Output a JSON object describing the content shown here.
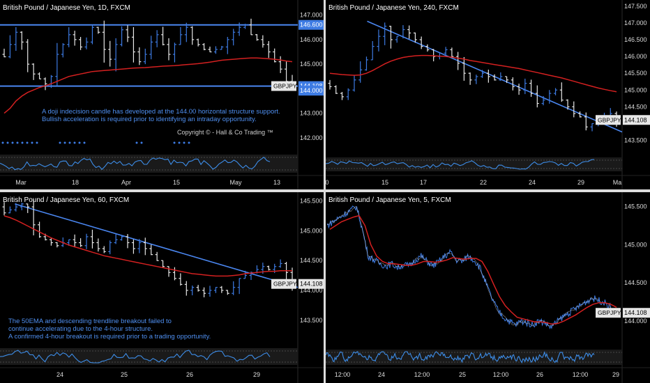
{
  "colors": {
    "background": "#000000",
    "bull": "#3d7be3",
    "bear": "#e8e8e8",
    "ema": "#d42020",
    "trend": "#4a86f0",
    "oscillator": "#3d8de8",
    "divider": "#dcdcdc",
    "axis_text": "#dddddd"
  },
  "panels": [
    {
      "id": "p1",
      "title": "British Pound / Japanese Yen, 1D, FXCM",
      "note": "A doji indecision candle has developed at the 144.00 horizontal structure support.\nBullish acceleration is required prior to identifying an intraday opportunity.",
      "copyright": "Copyright © - Hall & Co Trading ™",
      "price_labels": [
        "147.000",
        "146.000",
        "145.000",
        "144.000",
        "143.000",
        "142.000"
      ],
      "tag_levels": [
        "146.600",
        "144.108",
        "144.000"
      ],
      "symbol_tag": "GBPJPY",
      "date_labels": [
        "Mar",
        "18",
        "Apr",
        "15",
        "May",
        "13"
      ]
    },
    {
      "id": "p2",
      "title": "British Pound / Japanese Yen, 240, FXCM",
      "price_labels": [
        "147.500",
        "147.000",
        "146.500",
        "146.000",
        "145.500",
        "145.000",
        "144.500",
        "143.500"
      ],
      "current_price": "144.108",
      "symbol_tag": "GBPJPY",
      "date_labels": [
        "0",
        "15",
        "17",
        "22",
        "24",
        "29",
        "Ma"
      ]
    },
    {
      "id": "p3",
      "title": "British Pound / Japanese Yen, 60, FXCM",
      "note": "The 50EMA and descending trendline breakout failed to\ncontinue accelerating due to the 4-hour structure.\nA confirmed 4-hour breakout is required prior to a trading opportunity.",
      "price_labels": [
        "145.500",
        "145.000",
        "144.500",
        "144.000",
        "143.500"
      ],
      "current_price": "144.108",
      "symbol_tag": "GBPJPY",
      "date_labels": [
        "24",
        "25",
        "26",
        "29"
      ]
    },
    {
      "id": "p4",
      "title": "British Pound / Japanese Yen, 5, FXCM",
      "price_labels": [
        "145.500",
        "145.000",
        "144.500",
        "144.000"
      ],
      "current_price": "144.108",
      "symbol_tag": "GBPJPY",
      "date_labels": [
        "12:00",
        "24",
        "12:00",
        "25",
        "12:00",
        "26",
        "12:00",
        "29"
      ]
    }
  ],
  "chart_data": [
    {
      "type": "candlestick",
      "title": "British Pound / Japanese Yen, 1D, FXCM",
      "ylim": [
        141.6,
        147.5
      ],
      "horizontal_levels": [
        146.6,
        144.108
      ],
      "ema_label": "",
      "close_series": [
        145.3,
        145.8,
        146.3,
        145.9,
        145.0,
        144.6,
        144.4,
        144.2,
        144.5,
        145.4,
        145.8,
        146.2,
        146.0,
        145.7,
        145.9,
        146.5,
        146.3,
        145.6,
        145.2,
        145.8,
        146.4,
        146.1,
        145.5,
        145.1,
        145.4,
        145.9,
        146.2,
        145.8,
        145.4,
        145.8,
        146.2,
        146.5,
        146.0,
        145.8,
        145.6,
        145.5,
        145.6,
        145.7,
        146.0,
        146.3,
        146.5,
        146.6,
        146.2,
        146.0,
        145.8,
        145.5,
        145.1,
        144.8,
        144.3,
        144.1
      ],
      "ema_series": [
        143.0,
        143.2,
        143.5,
        143.7,
        143.85,
        143.95,
        144.05,
        144.12,
        144.2,
        144.3,
        144.4,
        144.5,
        144.55,
        144.6,
        144.65,
        144.7,
        144.72,
        144.74,
        144.76,
        144.78,
        144.8,
        144.82,
        144.84,
        144.85,
        144.86,
        144.88,
        144.9,
        144.92,
        144.93,
        144.94,
        144.96,
        144.98,
        145.0,
        145.02,
        145.05,
        145.08,
        145.12,
        145.16,
        145.18,
        145.2,
        145.22,
        145.24,
        145.25,
        145.25,
        145.24,
        145.22,
        145.2,
        145.17,
        145.13,
        145.1
      ],
      "current_price": 144.108
    },
    {
      "type": "candlestick",
      "title": "British Pound / Japanese Yen, 240, FXCM",
      "ylim": [
        143.2,
        147.6
      ],
      "trendline": [
        [
          0.14,
          147.05
        ],
        [
          1.0,
          143.75
        ]
      ],
      "close_series": [
        145.1,
        144.9,
        144.8,
        145.0,
        145.3,
        145.6,
        145.9,
        146.3,
        146.6,
        146.9,
        146.5,
        146.6,
        146.8,
        146.7,
        146.5,
        146.3,
        146.2,
        146.0,
        146.1,
        146.2,
        146.0,
        145.8,
        145.5,
        145.3,
        145.4,
        145.5,
        145.4,
        145.3,
        145.4,
        145.3,
        145.1,
        145.0,
        145.2,
        144.9,
        144.6,
        144.7,
        144.9,
        145.0,
        144.7,
        144.5,
        144.3,
        144.2,
        143.9,
        144.0,
        144.1,
        144.2,
        144.3,
        144.1
      ],
      "ema_series": [
        145.5,
        145.48,
        145.46,
        145.45,
        145.44,
        145.45,
        145.5,
        145.58,
        145.68,
        145.78,
        145.86,
        145.92,
        145.97,
        146.0,
        146.02,
        146.03,
        146.03,
        146.02,
        146.01,
        146.0,
        145.98,
        145.95,
        145.92,
        145.88,
        145.85,
        145.82,
        145.79,
        145.76,
        145.73,
        145.7,
        145.67,
        145.64,
        145.6,
        145.56,
        145.52,
        145.48,
        145.44,
        145.4,
        145.36,
        145.31,
        145.26,
        145.21,
        145.16,
        145.11,
        145.06,
        145.02,
        144.98,
        144.95
      ],
      "current_price": 144.108
    },
    {
      "type": "candlestick",
      "title": "British Pound / Japanese Yen, 60, FXCM",
      "ylim": [
        143.1,
        145.6
      ],
      "trendline": [
        [
          0.05,
          145.45
        ],
        [
          1.0,
          144.05
        ]
      ],
      "close_series": [
        145.3,
        145.35,
        145.4,
        145.45,
        145.4,
        145.1,
        144.9,
        144.85,
        144.8,
        144.75,
        144.8,
        144.85,
        144.8,
        144.75,
        144.9,
        144.8,
        144.7,
        144.65,
        144.8,
        144.85,
        144.9,
        144.8,
        144.7,
        144.8,
        144.7,
        144.6,
        144.5,
        144.4,
        144.3,
        144.2,
        144.1,
        144.0,
        144.05,
        144.0,
        143.95,
        144.0,
        144.05,
        144.0,
        143.95,
        144.05,
        144.2,
        144.25,
        144.3,
        144.35,
        144.4,
        144.35,
        144.4,
        144.45,
        144.3,
        144.11
      ],
      "ema_series": [
        145.25,
        145.22,
        145.18,
        145.13,
        145.08,
        145.03,
        144.98,
        144.93,
        144.88,
        144.84,
        144.8,
        144.76,
        144.73,
        144.7,
        144.67,
        144.64,
        144.61,
        144.58,
        144.56,
        144.54,
        144.52,
        144.5,
        144.48,
        144.46,
        144.44,
        144.42,
        144.4,
        144.38,
        144.36,
        144.34,
        144.32,
        144.3,
        144.28,
        144.27,
        144.26,
        144.25,
        144.24,
        144.24,
        144.24,
        144.25,
        144.26,
        144.28,
        144.29,
        144.3,
        144.31,
        144.32,
        144.32,
        144.33,
        144.33,
        144.33
      ],
      "current_price": 144.108
    },
    {
      "type": "line",
      "title": "British Pound / Japanese Yen, 5, FXCM",
      "ylim": [
        143.7,
        145.65
      ],
      "close_series": [
        145.25,
        145.3,
        145.35,
        145.4,
        145.45,
        145.5,
        145.2,
        144.85,
        144.8,
        144.75,
        144.72,
        144.75,
        144.7,
        144.74,
        144.72,
        144.8,
        144.85,
        144.78,
        144.72,
        144.78,
        144.85,
        144.9,
        144.8,
        144.78,
        144.85,
        144.8,
        144.7,
        144.5,
        144.3,
        144.15,
        144.05,
        144.0,
        143.95,
        144.0,
        143.98,
        143.95,
        144.0,
        143.98,
        143.92,
        143.98,
        144.05,
        144.1,
        144.15,
        144.2,
        144.25,
        144.3,
        144.28,
        144.25,
        144.2,
        144.11
      ],
      "ema_series": [
        145.2,
        145.25,
        145.3,
        145.33,
        145.36,
        145.38,
        145.25,
        145.0,
        144.85,
        144.78,
        144.75,
        144.75,
        144.74,
        144.73,
        144.73,
        144.75,
        144.78,
        144.78,
        144.77,
        144.78,
        144.8,
        144.83,
        144.82,
        144.81,
        144.82,
        144.82,
        144.78,
        144.65,
        144.48,
        144.32,
        144.2,
        144.12,
        144.05,
        144.03,
        144.01,
        143.99,
        143.99,
        143.98,
        143.96,
        143.97,
        144.0,
        144.04,
        144.08,
        144.13,
        144.18,
        144.22,
        144.24,
        144.24,
        144.22,
        144.18
      ],
      "current_price": 144.108
    }
  ]
}
